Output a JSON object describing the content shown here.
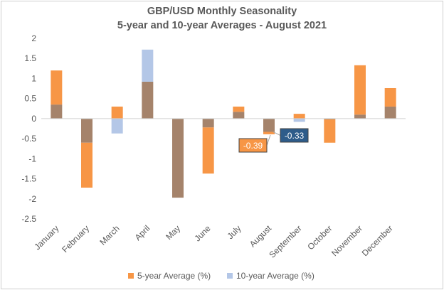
{
  "colors": {
    "five_year": "#F79646",
    "ten_year": "#B4C7E7",
    "overlap": "#A5836B",
    "label_five_bg": "#F79646",
    "label_ten_bg": "#2E5C8A"
  },
  "chart_data": {
    "type": "bar",
    "title": "GBP/USD Monthly Seasonality",
    "subtitle": "5-year and 10-year Averages - August 2021",
    "categories": [
      "January",
      "February",
      "March",
      "April",
      "May",
      "June",
      "July",
      "August",
      "September",
      "October",
      "November",
      "December"
    ],
    "series": [
      {
        "name": "5-year Average (%)",
        "values": [
          1.2,
          -1.72,
          0.3,
          0.92,
          -1.97,
          -1.37,
          0.3,
          -0.39,
          0.12,
          -0.6,
          1.33,
          0.76
        ]
      },
      {
        "name": "10-year Average (%)",
        "values": [
          0.35,
          -0.6,
          -0.37,
          1.72,
          -1.97,
          -0.22,
          0.17,
          -0.33,
          -0.08,
          -0.02,
          0.1,
          0.3
        ]
      }
    ],
    "ylim": [
      -2.5,
      2
    ],
    "yticks": [
      "2",
      "1.5",
      "1",
      "0.5",
      "0",
      "-0.5",
      "-1",
      "-1.5",
      "-2",
      "-2.5"
    ],
    "ytick_values": [
      2,
      1.5,
      1,
      0.5,
      0,
      -0.5,
      -1,
      -1.5,
      -2,
      -2.5
    ],
    "grid": false,
    "legend_position": "bottom",
    "annotations": [
      {
        "text": "-0.39",
        "series": 0,
        "category": "August"
      },
      {
        "text": "-0.33",
        "series": 1,
        "category": "August"
      }
    ]
  }
}
